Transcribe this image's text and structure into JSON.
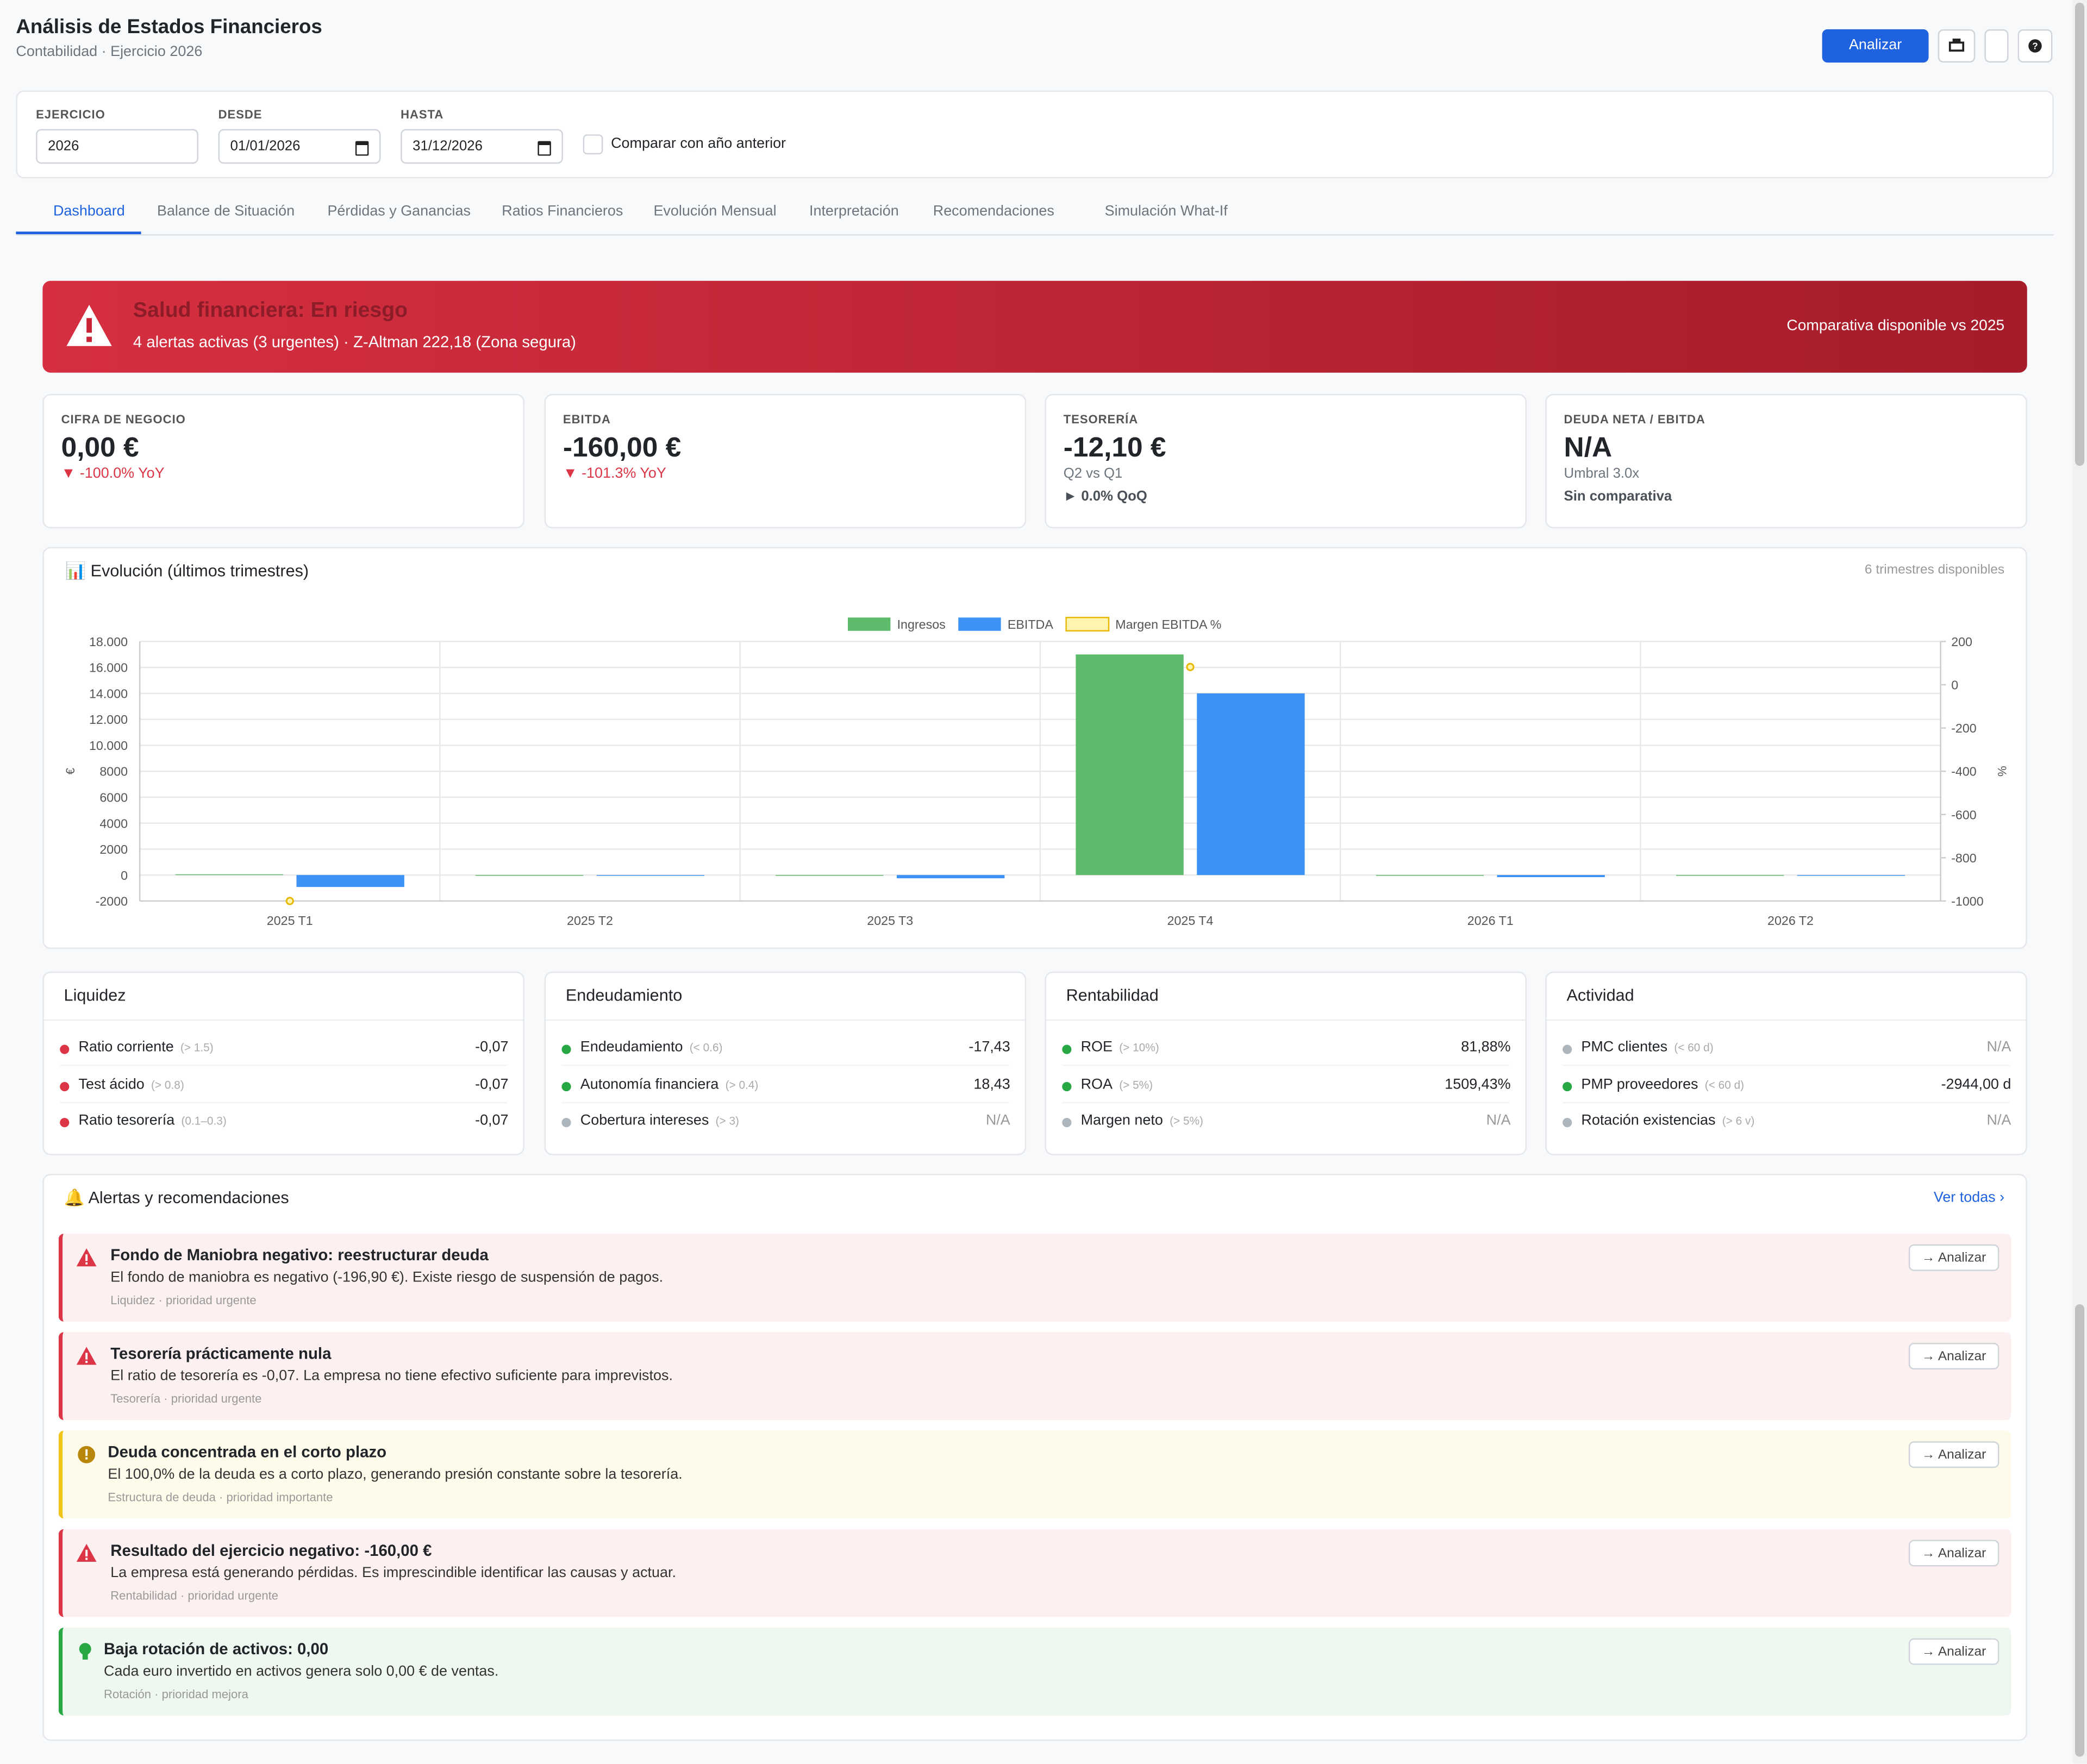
{
  "header": {
    "title": "Análisis de Estados Financieros",
    "subtitle": "Contabilidad · Ejercicio 2026",
    "button": "Analizar"
  },
  "filters": {
    "fields": [
      {
        "label": "EJERCICIO",
        "value": "2026"
      },
      {
        "label": "DESDE",
        "value": "01/01/2026"
      },
      {
        "label": "HASTA",
        "value": "31/12/2026"
      }
    ],
    "checkbox": "Comparar con año anterior"
  },
  "tabs": [
    "Dashboard",
    "Balance de Situación",
    "Pérdidas y Ganancias",
    "Ratios Financieros",
    "Evolución Mensual",
    "Interpretación",
    "Recomendaciones",
    "Simulación What-If"
  ],
  "banner": {
    "title": "Salud financiera: En riesgo",
    "text": "4 alertas activas (3 urgentes) · Z-Altman 222,18 (Zona segura)",
    "note": "Comparativa disponible vs 2025"
  },
  "kpis": [
    {
      "label": "CIFRA DE NEGOCIO",
      "value": "0,00 €",
      "lines": [
        {
          "text": "▼ -100.0% YoY",
          "style": "down"
        }
      ]
    },
    {
      "label": "EBITDA",
      "value": "-160,00 €",
      "lines": [
        {
          "text": "▼ -101.3% YoY",
          "style": "down"
        }
      ]
    },
    {
      "label": "TESORERÍA",
      "value": "-12,10 €",
      "lines": [
        {
          "text": "Q2 vs Q1",
          "style": "muted"
        },
        {
          "text": "► 0.0% QoQ",
          "style": "strong"
        }
      ]
    },
    {
      "label": "DEUDA NETA / EBITDA",
      "value": "N/A",
      "lines": [
        {
          "text": "Umbral 3.0x",
          "style": "muted"
        },
        {
          "text": "Sin comparativa",
          "style": "strong"
        }
      ]
    }
  ],
  "chart": {
    "title": "Evolución (últimos trimestres)",
    "note": "6 trimestres disponibles",
    "chart_data": {
      "type": "bar",
      "categories": [
        "2025 T1",
        "2025 T2",
        "2025 T3",
        "2025 T4",
        "2026 T1",
        "2026 T2"
      ],
      "series": [
        {
          "name": "Ingresos",
          "color": "#5dbb6b",
          "values": [
            60,
            0,
            0,
            17000,
            0,
            0
          ]
        },
        {
          "name": "EBITDA",
          "color": "#3d93f5",
          "values": [
            -920,
            -60,
            -250,
            14000,
            -160,
            0
          ]
        },
        {
          "name": "Margen EBITDA %",
          "color": "#e6b800",
          "axis": "y2",
          "values": [
            -1000,
            null,
            null,
            82,
            null,
            null
          ]
        }
      ],
      "ylabel": "€",
      "y2label": "%",
      "ylim": [
        -2000,
        18000
      ],
      "yticks": [
        {
          "value": 18000,
          "label": "18.000"
        },
        {
          "value": 16000,
          "label": "16.000"
        },
        {
          "value": 14000,
          "label": "14.000"
        },
        {
          "value": 12000,
          "label": "12.000"
        },
        {
          "value": 10000,
          "label": "10.000"
        },
        8000,
        6000,
        4000,
        2000,
        0,
        -2000
      ],
      "y2lim": [
        -1000,
        200
      ],
      "y2ticks": [
        200,
        0,
        -200,
        -400,
        -600,
        -800,
        -1000
      ],
      "grid": true,
      "legend": "top"
    }
  },
  "ratios": [
    {
      "title": "Liquidez",
      "rows": [
        {
          "name": "Ratio corriente",
          "threshold": "(> 1.5)",
          "value": "-0,07",
          "color": "#dc3545"
        },
        {
          "name": "Test ácido",
          "threshold": "(> 0.8)",
          "value": "-0,07",
          "color": "#dc3545"
        },
        {
          "name": "Ratio tesorería",
          "threshold": "(0.1–0.3)",
          "value": "-0,07",
          "color": "#dc3545"
        }
      ]
    },
    {
      "title": "Endeudamiento",
      "rows": [
        {
          "name": "Endeudamiento",
          "threshold": "(< 0.6)",
          "value": "-17,43",
          "color": "#28a745"
        },
        {
          "name": "Autonomía financiera",
          "threshold": "(> 0.4)",
          "value": "18,43",
          "color": "#28a745"
        },
        {
          "name": "Cobertura intereses",
          "threshold": "(> 3)",
          "value": "N/A",
          "color": "#adb5bd"
        }
      ]
    },
    {
      "title": "Rentabilidad",
      "rows": [
        {
          "name": "ROE",
          "threshold": "(> 10%)",
          "value": "81,88%",
          "color": "#28a745"
        },
        {
          "name": "ROA",
          "threshold": "(> 5%)",
          "value": "1509,43%",
          "color": "#28a745"
        },
        {
          "name": "Margen neto",
          "threshold": "(> 5%)",
          "value": "N/A",
          "color": "#adb5bd"
        }
      ]
    },
    {
      "title": "Actividad",
      "rows": [
        {
          "name": "PMC clientes",
          "threshold": "(< 60 d)",
          "value": "N/A",
          "color": "#adb5bd"
        },
        {
          "name": "PMP proveedores",
          "threshold": "(< 60 d)",
          "value": "-2944,00 d",
          "color": "#28a745"
        },
        {
          "name": "Rotación existencias",
          "threshold": "(> 6 v)",
          "value": "N/A",
          "color": "#adb5bd"
        }
      ]
    }
  ],
  "alerts": {
    "title": "Alertas y recomendaciones",
    "link": "Ver todas",
    "action": "Analizar",
    "items": [
      {
        "title": "Fondo de Maniobra negativo: reestructurar deuda",
        "text": "El fondo de maniobra es negativo (-196,90 €). Existe riesgo de suspensión de pagos.",
        "meta": "Liquidez · prioridad urgente",
        "level": "urgent"
      },
      {
        "title": "Tesorería prácticamente nula",
        "text": "El ratio de tesorería es -0,07. La empresa no tiene efectivo suficiente para imprevistos.",
        "meta": "Tesorería · prioridad urgente",
        "level": "urgent"
      },
      {
        "title": "Deuda concentrada en el corto plazo",
        "text": "El 100,0% de la deuda es a corto plazo, generando presión constante sobre la tesorería.",
        "meta": "Estructura de deuda · prioridad importante",
        "level": "important"
      },
      {
        "title": "Resultado del ejercicio negativo: -160,00 €",
        "text": "La empresa está generando pérdidas. Es imprescindible identificar las causas y actuar.",
        "meta": "Rentabilidad · prioridad urgente",
        "level": "urgent"
      },
      {
        "title": "Baja rotación de activos: 0,00",
        "text": "Cada euro invertido en activos genera solo 0,00 € de ventas.",
        "meta": "Rotación · prioridad mejora",
        "level": "improve"
      }
    ]
  }
}
